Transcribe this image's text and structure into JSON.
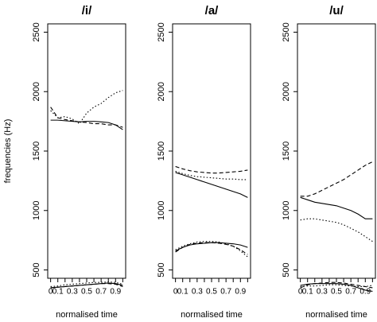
{
  "chart_data": [
    {
      "type": "line",
      "title": "/i/",
      "xlabel": "normalised time",
      "ylabel": "frequencies (Hz)",
      "x": [
        0,
        0.1,
        0.2,
        0.3,
        0.4,
        0.5,
        0.6,
        0.7,
        0.8,
        0.9,
        1.0
      ],
      "xlim": [
        -0.04,
        1.04
      ],
      "xticks": [
        0,
        0.1,
        0.3,
        0.5,
        0.7,
        0.9
      ],
      "xminorticks": [
        0.2,
        0.4,
        0.6,
        0.8,
        1
      ],
      "ylim": [
        430,
        2570
      ],
      "yticks": [
        500,
        1000,
        1500,
        2000,
        2500
      ],
      "series": [
        {
          "color": "#000000",
          "dash": "solid",
          "values": [
            1760,
            1760,
            1755,
            1750,
            1745,
            1750,
            1750,
            1745,
            1740,
            1720,
            1680
          ]
        },
        {
          "color": "#000000",
          "dash": "dashed",
          "values": [
            1870,
            1780,
            1765,
            1755,
            1745,
            1740,
            1730,
            1730,
            1720,
            1720,
            1700
          ]
        },
        {
          "color": "#000000",
          "dash": "dotted",
          "values": [
            1840,
            1780,
            1790,
            1770,
            1730,
            1820,
            1870,
            1900,
            1950,
            1990,
            2010
          ]
        },
        {
          "color": "#000000",
          "dash": "solid",
          "values": [
            350,
            355,
            360,
            365,
            370,
            375,
            380,
            385,
            390,
            385,
            370
          ]
        },
        {
          "color": "#000000",
          "dash": "dashed",
          "values": [
            350,
            355,
            360,
            365,
            370,
            375,
            380,
            385,
            385,
            380,
            360
          ]
        },
        {
          "color": "#000000",
          "dash": "dotted",
          "values": [
            360,
            365,
            375,
            380,
            385,
            390,
            395,
            395,
            400,
            395,
            380
          ]
        }
      ]
    },
    {
      "type": "line",
      "title": "/a/",
      "xlabel": "normalised time",
      "x": [
        0,
        0.1,
        0.2,
        0.3,
        0.4,
        0.5,
        0.6,
        0.7,
        0.8,
        0.9,
        1.0
      ],
      "xlim": [
        -0.04,
        1.04
      ],
      "xticks": [
        0,
        0.1,
        0.3,
        0.5,
        0.7,
        0.9
      ],
      "xminorticks": [
        0.2,
        0.4,
        0.6,
        0.8,
        1
      ],
      "ylim": [
        430,
        2570
      ],
      "yticks": [
        500,
        1000,
        1500,
        2000,
        2500
      ],
      "series": [
        {
          "color": "#000000",
          "dash": "solid",
          "values": [
            1320,
            1300,
            1280,
            1260,
            1240,
            1220,
            1200,
            1180,
            1160,
            1140,
            1110
          ]
        },
        {
          "color": "#000000",
          "dash": "dashed",
          "values": [
            1370,
            1350,
            1335,
            1325,
            1320,
            1315,
            1315,
            1320,
            1325,
            1330,
            1340
          ]
        },
        {
          "color": "#000000",
          "dash": "dotted",
          "values": [
            1330,
            1310,
            1295,
            1285,
            1280,
            1275,
            1270,
            1265,
            1265,
            1260,
            1260
          ]
        },
        {
          "color": "#000000",
          "dash": "solid",
          "values": [
            660,
            690,
            710,
            720,
            725,
            730,
            730,
            725,
            720,
            710,
            690
          ]
        },
        {
          "color": "#000000",
          "dash": "dashed",
          "values": [
            650,
            690,
            715,
            725,
            730,
            730,
            725,
            715,
            700,
            670,
            630
          ]
        },
        {
          "color": "#000000",
          "dash": "dotted",
          "values": [
            670,
            700,
            720,
            735,
            740,
            740,
            735,
            720,
            700,
            660,
            610
          ]
        }
      ]
    },
    {
      "type": "line",
      "title": "/u/",
      "xlabel": "normalised time",
      "x": [
        0,
        0.1,
        0.2,
        0.3,
        0.4,
        0.5,
        0.6,
        0.7,
        0.8,
        0.9,
        1.0
      ],
      "xlim": [
        -0.04,
        1.04
      ],
      "xticks": [
        0,
        0.1,
        0.3,
        0.5,
        0.7,
        0.9
      ],
      "xminorticks": [
        0.2,
        0.4,
        0.6,
        0.8,
        1
      ],
      "ylim": [
        430,
        2570
      ],
      "yticks": [
        500,
        1000,
        1500,
        2000,
        2500
      ],
      "series": [
        {
          "color": "#000000",
          "dash": "solid",
          "values": [
            1110,
            1090,
            1070,
            1060,
            1050,
            1040,
            1020,
            1000,
            970,
            930,
            930
          ]
        },
        {
          "color": "#000000",
          "dash": "dashed",
          "values": [
            1120,
            1120,
            1140,
            1170,
            1200,
            1230,
            1260,
            1300,
            1340,
            1380,
            1410
          ]
        },
        {
          "color": "#000000",
          "dash": "dotted",
          "values": [
            920,
            930,
            930,
            920,
            910,
            900,
            880,
            850,
            820,
            780,
            740
          ]
        },
        {
          "color": "#000000",
          "dash": "solid",
          "values": [
            370,
            380,
            385,
            385,
            385,
            385,
            380,
            370,
            350,
            330,
            320
          ]
        },
        {
          "color": "#000000",
          "dash": "dashed",
          "values": [
            350,
            375,
            385,
            390,
            395,
            395,
            390,
            380,
            370,
            360,
            350
          ]
        },
        {
          "color": "#000000",
          "dash": "dotted",
          "values": [
            360,
            365,
            365,
            370,
            375,
            375,
            370,
            365,
            360,
            360,
            370
          ]
        }
      ]
    }
  ]
}
